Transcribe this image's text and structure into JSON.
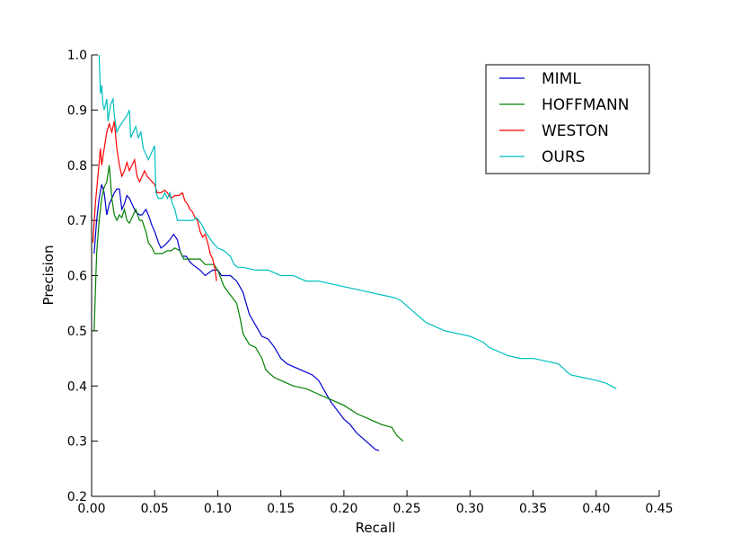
{
  "chart_data": {
    "type": "line",
    "xlabel": "Recall",
    "ylabel": "Precision",
    "xlim": [
      0.0,
      0.45
    ],
    "ylim": [
      0.2,
      1.0
    ],
    "xticks": [
      "0.00",
      "0.05",
      "0.10",
      "0.15",
      "0.20",
      "0.25",
      "0.30",
      "0.35",
      "0.40",
      "0.45"
    ],
    "yticks": [
      "0.2",
      "0.3",
      "0.4",
      "0.5",
      "0.6",
      "0.7",
      "0.8",
      "0.9",
      "1.0"
    ],
    "grid": false,
    "legend_position": "top-right",
    "series": [
      {
        "name": "MIML",
        "color": "#0000cc",
        "points": [
          [
            0.002,
            0.64
          ],
          [
            0.004,
            0.7
          ],
          [
            0.006,
            0.74
          ],
          [
            0.008,
            0.765
          ],
          [
            0.01,
            0.75
          ],
          [
            0.012,
            0.71
          ],
          [
            0.014,
            0.73
          ],
          [
            0.016,
            0.74
          ],
          [
            0.018,
            0.75
          ],
          [
            0.02,
            0.757
          ],
          [
            0.022,
            0.757
          ],
          [
            0.024,
            0.72
          ],
          [
            0.026,
            0.73
          ],
          [
            0.028,
            0.745
          ],
          [
            0.03,
            0.74
          ],
          [
            0.032,
            0.73
          ],
          [
            0.035,
            0.715
          ],
          [
            0.038,
            0.71
          ],
          [
            0.04,
            0.71
          ],
          [
            0.043,
            0.72
          ],
          [
            0.045,
            0.71
          ],
          [
            0.048,
            0.69
          ],
          [
            0.05,
            0.68
          ],
          [
            0.053,
            0.66
          ],
          [
            0.055,
            0.65
          ],
          [
            0.058,
            0.655
          ],
          [
            0.062,
            0.665
          ],
          [
            0.065,
            0.675
          ],
          [
            0.068,
            0.665
          ],
          [
            0.07,
            0.645
          ],
          [
            0.072,
            0.635
          ],
          [
            0.075,
            0.635
          ],
          [
            0.078,
            0.625
          ],
          [
            0.08,
            0.62
          ],
          [
            0.083,
            0.615
          ],
          [
            0.086,
            0.61
          ],
          [
            0.09,
            0.6
          ],
          [
            0.093,
            0.605
          ],
          [
            0.096,
            0.61
          ],
          [
            0.1,
            0.61
          ],
          [
            0.103,
            0.6
          ],
          [
            0.106,
            0.6
          ],
          [
            0.11,
            0.6
          ],
          [
            0.115,
            0.59
          ],
          [
            0.12,
            0.57
          ],
          [
            0.125,
            0.53
          ],
          [
            0.13,
            0.51
          ],
          [
            0.135,
            0.49
          ],
          [
            0.14,
            0.485
          ],
          [
            0.145,
            0.47
          ],
          [
            0.15,
            0.45
          ],
          [
            0.155,
            0.44
          ],
          [
            0.16,
            0.435
          ],
          [
            0.165,
            0.43
          ],
          [
            0.17,
            0.425
          ],
          [
            0.175,
            0.42
          ],
          [
            0.18,
            0.41
          ],
          [
            0.185,
            0.39
          ],
          [
            0.19,
            0.37
          ],
          [
            0.195,
            0.355
          ],
          [
            0.2,
            0.34
          ],
          [
            0.205,
            0.33
          ],
          [
            0.21,
            0.315
          ],
          [
            0.215,
            0.305
          ],
          [
            0.22,
            0.295
          ],
          [
            0.225,
            0.285
          ],
          [
            0.228,
            0.283
          ]
        ]
      },
      {
        "name": "HOFFMANN",
        "color": "#008000",
        "points": [
          [
            0.002,
            0.5
          ],
          [
            0.004,
            0.64
          ],
          [
            0.006,
            0.7
          ],
          [
            0.008,
            0.74
          ],
          [
            0.01,
            0.76
          ],
          [
            0.012,
            0.77
          ],
          [
            0.014,
            0.8
          ],
          [
            0.015,
            0.77
          ],
          [
            0.016,
            0.74
          ],
          [
            0.018,
            0.71
          ],
          [
            0.02,
            0.7
          ],
          [
            0.022,
            0.71
          ],
          [
            0.024,
            0.705
          ],
          [
            0.026,
            0.72
          ],
          [
            0.028,
            0.7
          ],
          [
            0.03,
            0.695
          ],
          [
            0.033,
            0.71
          ],
          [
            0.035,
            0.72
          ],
          [
            0.038,
            0.7
          ],
          [
            0.04,
            0.7
          ],
          [
            0.043,
            0.68
          ],
          [
            0.045,
            0.66
          ],
          [
            0.048,
            0.65
          ],
          [
            0.05,
            0.64
          ],
          [
            0.053,
            0.64
          ],
          [
            0.056,
            0.64
          ],
          [
            0.06,
            0.645
          ],
          [
            0.063,
            0.645
          ],
          [
            0.066,
            0.65
          ],
          [
            0.07,
            0.645
          ],
          [
            0.073,
            0.63
          ],
          [
            0.076,
            0.63
          ],
          [
            0.08,
            0.63
          ],
          [
            0.083,
            0.63
          ],
          [
            0.086,
            0.63
          ],
          [
            0.09,
            0.62
          ],
          [
            0.093,
            0.62
          ],
          [
            0.097,
            0.62
          ],
          [
            0.1,
            0.61
          ],
          [
            0.105,
            0.58
          ],
          [
            0.11,
            0.565
          ],
          [
            0.115,
            0.55
          ],
          [
            0.118,
            0.52
          ],
          [
            0.12,
            0.495
          ],
          [
            0.125,
            0.475
          ],
          [
            0.13,
            0.47
          ],
          [
            0.135,
            0.45
          ],
          [
            0.138,
            0.43
          ],
          [
            0.14,
            0.425
          ],
          [
            0.145,
            0.415
          ],
          [
            0.15,
            0.41
          ],
          [
            0.155,
            0.405
          ],
          [
            0.16,
            0.4
          ],
          [
            0.17,
            0.395
          ],
          [
            0.18,
            0.385
          ],
          [
            0.19,
            0.375
          ],
          [
            0.2,
            0.365
          ],
          [
            0.21,
            0.35
          ],
          [
            0.22,
            0.34
          ],
          [
            0.23,
            0.33
          ],
          [
            0.238,
            0.325
          ],
          [
            0.242,
            0.31
          ],
          [
            0.247,
            0.3
          ]
        ]
      },
      {
        "name": "WESTON",
        "color": "#ff0000",
        "points": [
          [
            0.001,
            0.66
          ],
          [
            0.003,
            0.73
          ],
          [
            0.005,
            0.78
          ],
          [
            0.007,
            0.83
          ],
          [
            0.008,
            0.8
          ],
          [
            0.01,
            0.83
          ],
          [
            0.012,
            0.86
          ],
          [
            0.014,
            0.875
          ],
          [
            0.016,
            0.86
          ],
          [
            0.018,
            0.88
          ],
          [
            0.02,
            0.83
          ],
          [
            0.022,
            0.8
          ],
          [
            0.024,
            0.78
          ],
          [
            0.026,
            0.79
          ],
          [
            0.028,
            0.805
          ],
          [
            0.03,
            0.79
          ],
          [
            0.032,
            0.8
          ],
          [
            0.034,
            0.81
          ],
          [
            0.036,
            0.78
          ],
          [
            0.038,
            0.77
          ],
          [
            0.04,
            0.78
          ],
          [
            0.042,
            0.79
          ],
          [
            0.044,
            0.78
          ],
          [
            0.046,
            0.775
          ],
          [
            0.048,
            0.77
          ],
          [
            0.05,
            0.765
          ],
          [
            0.052,
            0.75
          ],
          [
            0.055,
            0.75
          ],
          [
            0.058,
            0.755
          ],
          [
            0.06,
            0.75
          ],
          [
            0.063,
            0.74
          ],
          [
            0.066,
            0.745
          ],
          [
            0.069,
            0.745
          ],
          [
            0.072,
            0.75
          ],
          [
            0.074,
            0.735
          ],
          [
            0.076,
            0.73
          ],
          [
            0.078,
            0.72
          ],
          [
            0.08,
            0.715
          ],
          [
            0.082,
            0.705
          ],
          [
            0.084,
            0.7
          ],
          [
            0.086,
            0.68
          ],
          [
            0.088,
            0.67
          ],
          [
            0.09,
            0.675
          ],
          [
            0.092,
            0.66
          ],
          [
            0.094,
            0.64
          ],
          [
            0.096,
            0.63
          ],
          [
            0.098,
            0.61
          ],
          [
            0.099,
            0.59
          ]
        ]
      },
      {
        "name": "OURS",
        "color": "#00bfbf",
        "points": [
          [
            0.006,
            1.0
          ],
          [
            0.007,
            0.93
          ],
          [
            0.008,
            0.945
          ],
          [
            0.009,
            0.91
          ],
          [
            0.01,
            0.9
          ],
          [
            0.012,
            0.92
          ],
          [
            0.013,
            0.88
          ],
          [
            0.015,
            0.91
          ],
          [
            0.017,
            0.92
          ],
          [
            0.018,
            0.89
          ],
          [
            0.02,
            0.86
          ],
          [
            0.022,
            0.87
          ],
          [
            0.025,
            0.88
          ],
          [
            0.028,
            0.89
          ],
          [
            0.03,
            0.9
          ],
          [
            0.031,
            0.85
          ],
          [
            0.033,
            0.86
          ],
          [
            0.035,
            0.87
          ],
          [
            0.037,
            0.85
          ],
          [
            0.039,
            0.86
          ],
          [
            0.041,
            0.83
          ],
          [
            0.043,
            0.82
          ],
          [
            0.045,
            0.81
          ],
          [
            0.047,
            0.82
          ],
          [
            0.05,
            0.835
          ],
          [
            0.051,
            0.75
          ],
          [
            0.053,
            0.74
          ],
          [
            0.056,
            0.74
          ],
          [
            0.058,
            0.75
          ],
          [
            0.06,
            0.74
          ],
          [
            0.062,
            0.75
          ],
          [
            0.064,
            0.73
          ],
          [
            0.066,
            0.72
          ],
          [
            0.068,
            0.7
          ],
          [
            0.07,
            0.7
          ],
          [
            0.075,
            0.7
          ],
          [
            0.08,
            0.7
          ],
          [
            0.083,
            0.705
          ],
          [
            0.085,
            0.7
          ],
          [
            0.088,
            0.69
          ],
          [
            0.09,
            0.68
          ],
          [
            0.093,
            0.67
          ],
          [
            0.096,
            0.66
          ],
          [
            0.1,
            0.65
          ],
          [
            0.105,
            0.645
          ],
          [
            0.11,
            0.635
          ],
          [
            0.113,
            0.62
          ],
          [
            0.116,
            0.615
          ],
          [
            0.12,
            0.615
          ],
          [
            0.13,
            0.61
          ],
          [
            0.14,
            0.61
          ],
          [
            0.15,
            0.6
          ],
          [
            0.16,
            0.6
          ],
          [
            0.165,
            0.595
          ],
          [
            0.17,
            0.59
          ],
          [
            0.18,
            0.59
          ],
          [
            0.19,
            0.585
          ],
          [
            0.2,
            0.58
          ],
          [
            0.21,
            0.575
          ],
          [
            0.22,
            0.57
          ],
          [
            0.23,
            0.565
          ],
          [
            0.24,
            0.56
          ],
          [
            0.245,
            0.555
          ],
          [
            0.25,
            0.545
          ],
          [
            0.255,
            0.535
          ],
          [
            0.26,
            0.525
          ],
          [
            0.265,
            0.515
          ],
          [
            0.27,
            0.51
          ],
          [
            0.275,
            0.505
          ],
          [
            0.28,
            0.5
          ],
          [
            0.29,
            0.495
          ],
          [
            0.3,
            0.49
          ],
          [
            0.31,
            0.48
          ],
          [
            0.315,
            0.47
          ],
          [
            0.32,
            0.465
          ],
          [
            0.33,
            0.455
          ],
          [
            0.34,
            0.45
          ],
          [
            0.35,
            0.45
          ],
          [
            0.36,
            0.445
          ],
          [
            0.37,
            0.44
          ],
          [
            0.375,
            0.43
          ],
          [
            0.377,
            0.425
          ],
          [
            0.38,
            0.42
          ],
          [
            0.39,
            0.415
          ],
          [
            0.4,
            0.41
          ],
          [
            0.408,
            0.405
          ],
          [
            0.412,
            0.4
          ],
          [
            0.416,
            0.395
          ]
        ]
      }
    ]
  }
}
